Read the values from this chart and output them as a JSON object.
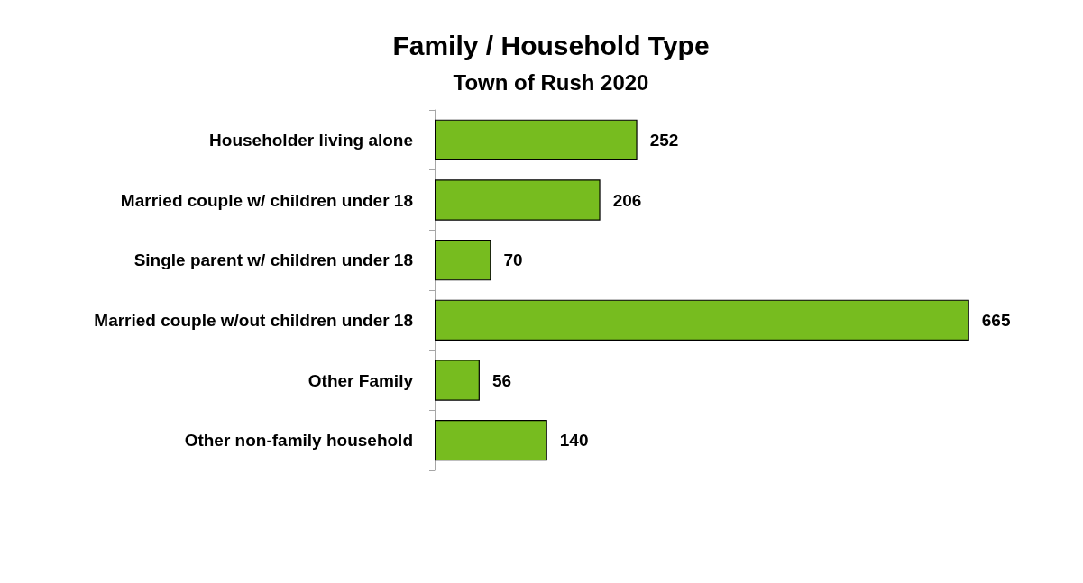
{
  "chart_data": {
    "type": "bar",
    "orientation": "horizontal",
    "title": "Family / Household Type",
    "subtitle": "Town of Rush 2020",
    "categories": [
      "Householder living alone",
      "Married couple w/ children under 18",
      "Single parent w/ children under 18",
      "Married couple w/out children under 18",
      "Other Family",
      "Other non-family household"
    ],
    "values": [
      252,
      206,
      70,
      665,
      56,
      140
    ],
    "color": "#77bc1f",
    "data_labels": true
  }
}
